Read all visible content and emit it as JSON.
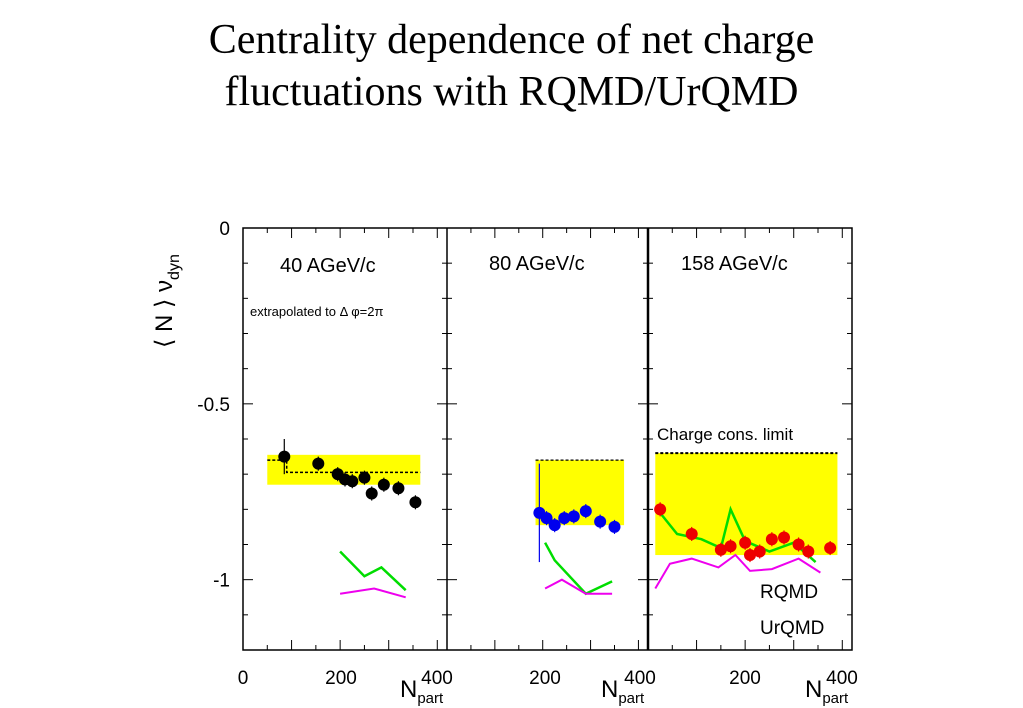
{
  "title_lines": [
    "Centrality dependence of net charge",
    "fluctuations with RQMD/UrQMD"
  ],
  "chart_data": {
    "type": "scatter",
    "ylabel_parts": [
      "⟨ N ⟩ ν",
      "dyn"
    ],
    "xlabel_parts": [
      "N",
      "part"
    ],
    "ylim": [
      -1.2,
      0
    ],
    "yticks": [
      {
        "v": 0,
        "label": "0"
      },
      {
        "v": -0.5,
        "label": "-0.5"
      },
      {
        "v": -1,
        "label": "-1"
      }
    ],
    "xlim": [
      0,
      420
    ],
    "xticks": [
      {
        "v": 0,
        "label": "0"
      },
      {
        "v": 200,
        "label": "200"
      },
      {
        "v": 400,
        "label": "400"
      }
    ],
    "grid": false,
    "colors": {
      "data40": "#000000",
      "data80": "#0000ee",
      "data158": "#ee0000",
      "band": "#ffff00",
      "rqmd": "#00dd00",
      "urqmd": "#ee00ee"
    },
    "panels": [
      {
        "label": "40 AGeV/c",
        "note": "extrapolated to  Δ φ=2π",
        "band": {
          "x": [
            50,
            365
          ],
          "y": [
            -0.73,
            -0.645
          ],
          "dashed_top": false
        },
        "limit": [
          [
            50,
            -0.66
          ],
          [
            90,
            -0.66
          ],
          [
            90,
            -0.695
          ],
          [
            365,
            -0.695
          ]
        ],
        "points": [
          {
            "x": 85,
            "y": -0.65,
            "err": 0.05
          },
          {
            "x": 155,
            "y": -0.67,
            "err": 0.02
          },
          {
            "x": 195,
            "y": -0.7,
            "err": 0.02
          },
          {
            "x": 210,
            "y": -0.715,
            "err": 0.02
          },
          {
            "x": 225,
            "y": -0.72,
            "err": 0.02
          },
          {
            "x": 250,
            "y": -0.71,
            "err": 0.02
          },
          {
            "x": 265,
            "y": -0.755,
            "err": 0.02
          },
          {
            "x": 290,
            "y": -0.73,
            "err": 0.02
          },
          {
            "x": 320,
            "y": -0.74,
            "err": 0.02
          },
          {
            "x": 355,
            "y": -0.78,
            "err": 0.02
          }
        ],
        "rqmd": [
          [
            200,
            -0.92
          ],
          [
            250,
            -0.99
          ],
          [
            285,
            -0.965
          ],
          [
            335,
            -1.03
          ]
        ],
        "urqmd": [
          [
            200,
            -1.04
          ],
          [
            270,
            -1.025
          ],
          [
            335,
            -1.05
          ]
        ]
      },
      {
        "label": "80 AGeV/c",
        "note": "",
        "band": {
          "x": [
            185,
            370
          ],
          "y": [
            -0.845,
            -0.66
          ],
          "dashed_top": true
        },
        "limit": [],
        "points": [
          {
            "x": 193,
            "y": -0.81,
            "err": 0.14
          },
          {
            "x": 208,
            "y": -0.825,
            "err": 0.02
          },
          {
            "x": 225,
            "y": -0.845,
            "err": 0.02
          },
          {
            "x": 245,
            "y": -0.825,
            "err": 0.02
          },
          {
            "x": 265,
            "y": -0.82,
            "err": 0.02
          },
          {
            "x": 290,
            "y": -0.805,
            "err": 0.02
          },
          {
            "x": 320,
            "y": -0.835,
            "err": 0.02
          },
          {
            "x": 350,
            "y": -0.85,
            "err": 0.02
          }
        ],
        "rqmd": [
          [
            205,
            -0.895
          ],
          [
            225,
            -0.945
          ],
          [
            290,
            -1.04
          ],
          [
            345,
            -1.005
          ]
        ],
        "urqmd": [
          [
            205,
            -1.025
          ],
          [
            240,
            -1.0
          ],
          [
            290,
            -1.04
          ],
          [
            345,
            -1.04
          ]
        ]
      },
      {
        "label": "158 AGeV/c",
        "note": "Charge cons. limit",
        "band": {
          "x": [
            15,
            390
          ],
          "y": [
            -0.93,
            -0.64
          ],
          "dashed_top": true
        },
        "limit": [],
        "points": [
          {
            "x": 25,
            "y": -0.8,
            "err": 0.02
          },
          {
            "x": 90,
            "y": -0.87,
            "err": 0.02
          },
          {
            "x": 150,
            "y": -0.915,
            "err": 0.02
          },
          {
            "x": 170,
            "y": -0.905,
            "err": 0.02
          },
          {
            "x": 200,
            "y": -0.895,
            "err": 0.02
          },
          {
            "x": 210,
            "y": -0.93,
            "err": 0.02
          },
          {
            "x": 230,
            "y": -0.92,
            "err": 0.02
          },
          {
            "x": 255,
            "y": -0.885,
            "err": 0.02
          },
          {
            "x": 280,
            "y": -0.88,
            "err": 0.02
          },
          {
            "x": 310,
            "y": -0.9,
            "err": 0.02
          },
          {
            "x": 330,
            "y": -0.92,
            "err": 0.02
          },
          {
            "x": 375,
            "y": -0.91,
            "err": 0.02
          }
        ],
        "rqmd": [
          [
            25,
            -0.81
          ],
          [
            60,
            -0.87
          ],
          [
            110,
            -0.885
          ],
          [
            150,
            -0.91
          ],
          [
            170,
            -0.8
          ],
          [
            200,
            -0.89
          ],
          [
            250,
            -0.92
          ],
          [
            300,
            -0.895
          ],
          [
            345,
            -0.95
          ]
        ],
        "urqmd": [
          [
            15,
            -1.025
          ],
          [
            45,
            -0.955
          ],
          [
            90,
            -0.94
          ],
          [
            145,
            -0.965
          ],
          [
            180,
            -0.93
          ],
          [
            210,
            -0.975
          ],
          [
            255,
            -0.97
          ],
          [
            310,
            -0.94
          ],
          [
            355,
            -0.98
          ]
        ]
      }
    ],
    "legend": [
      {
        "name": "RQMD",
        "key": "rqmd"
      },
      {
        "name": "UrQMD",
        "key": "urqmd"
      }
    ],
    "legend_position": "bottom-right"
  }
}
